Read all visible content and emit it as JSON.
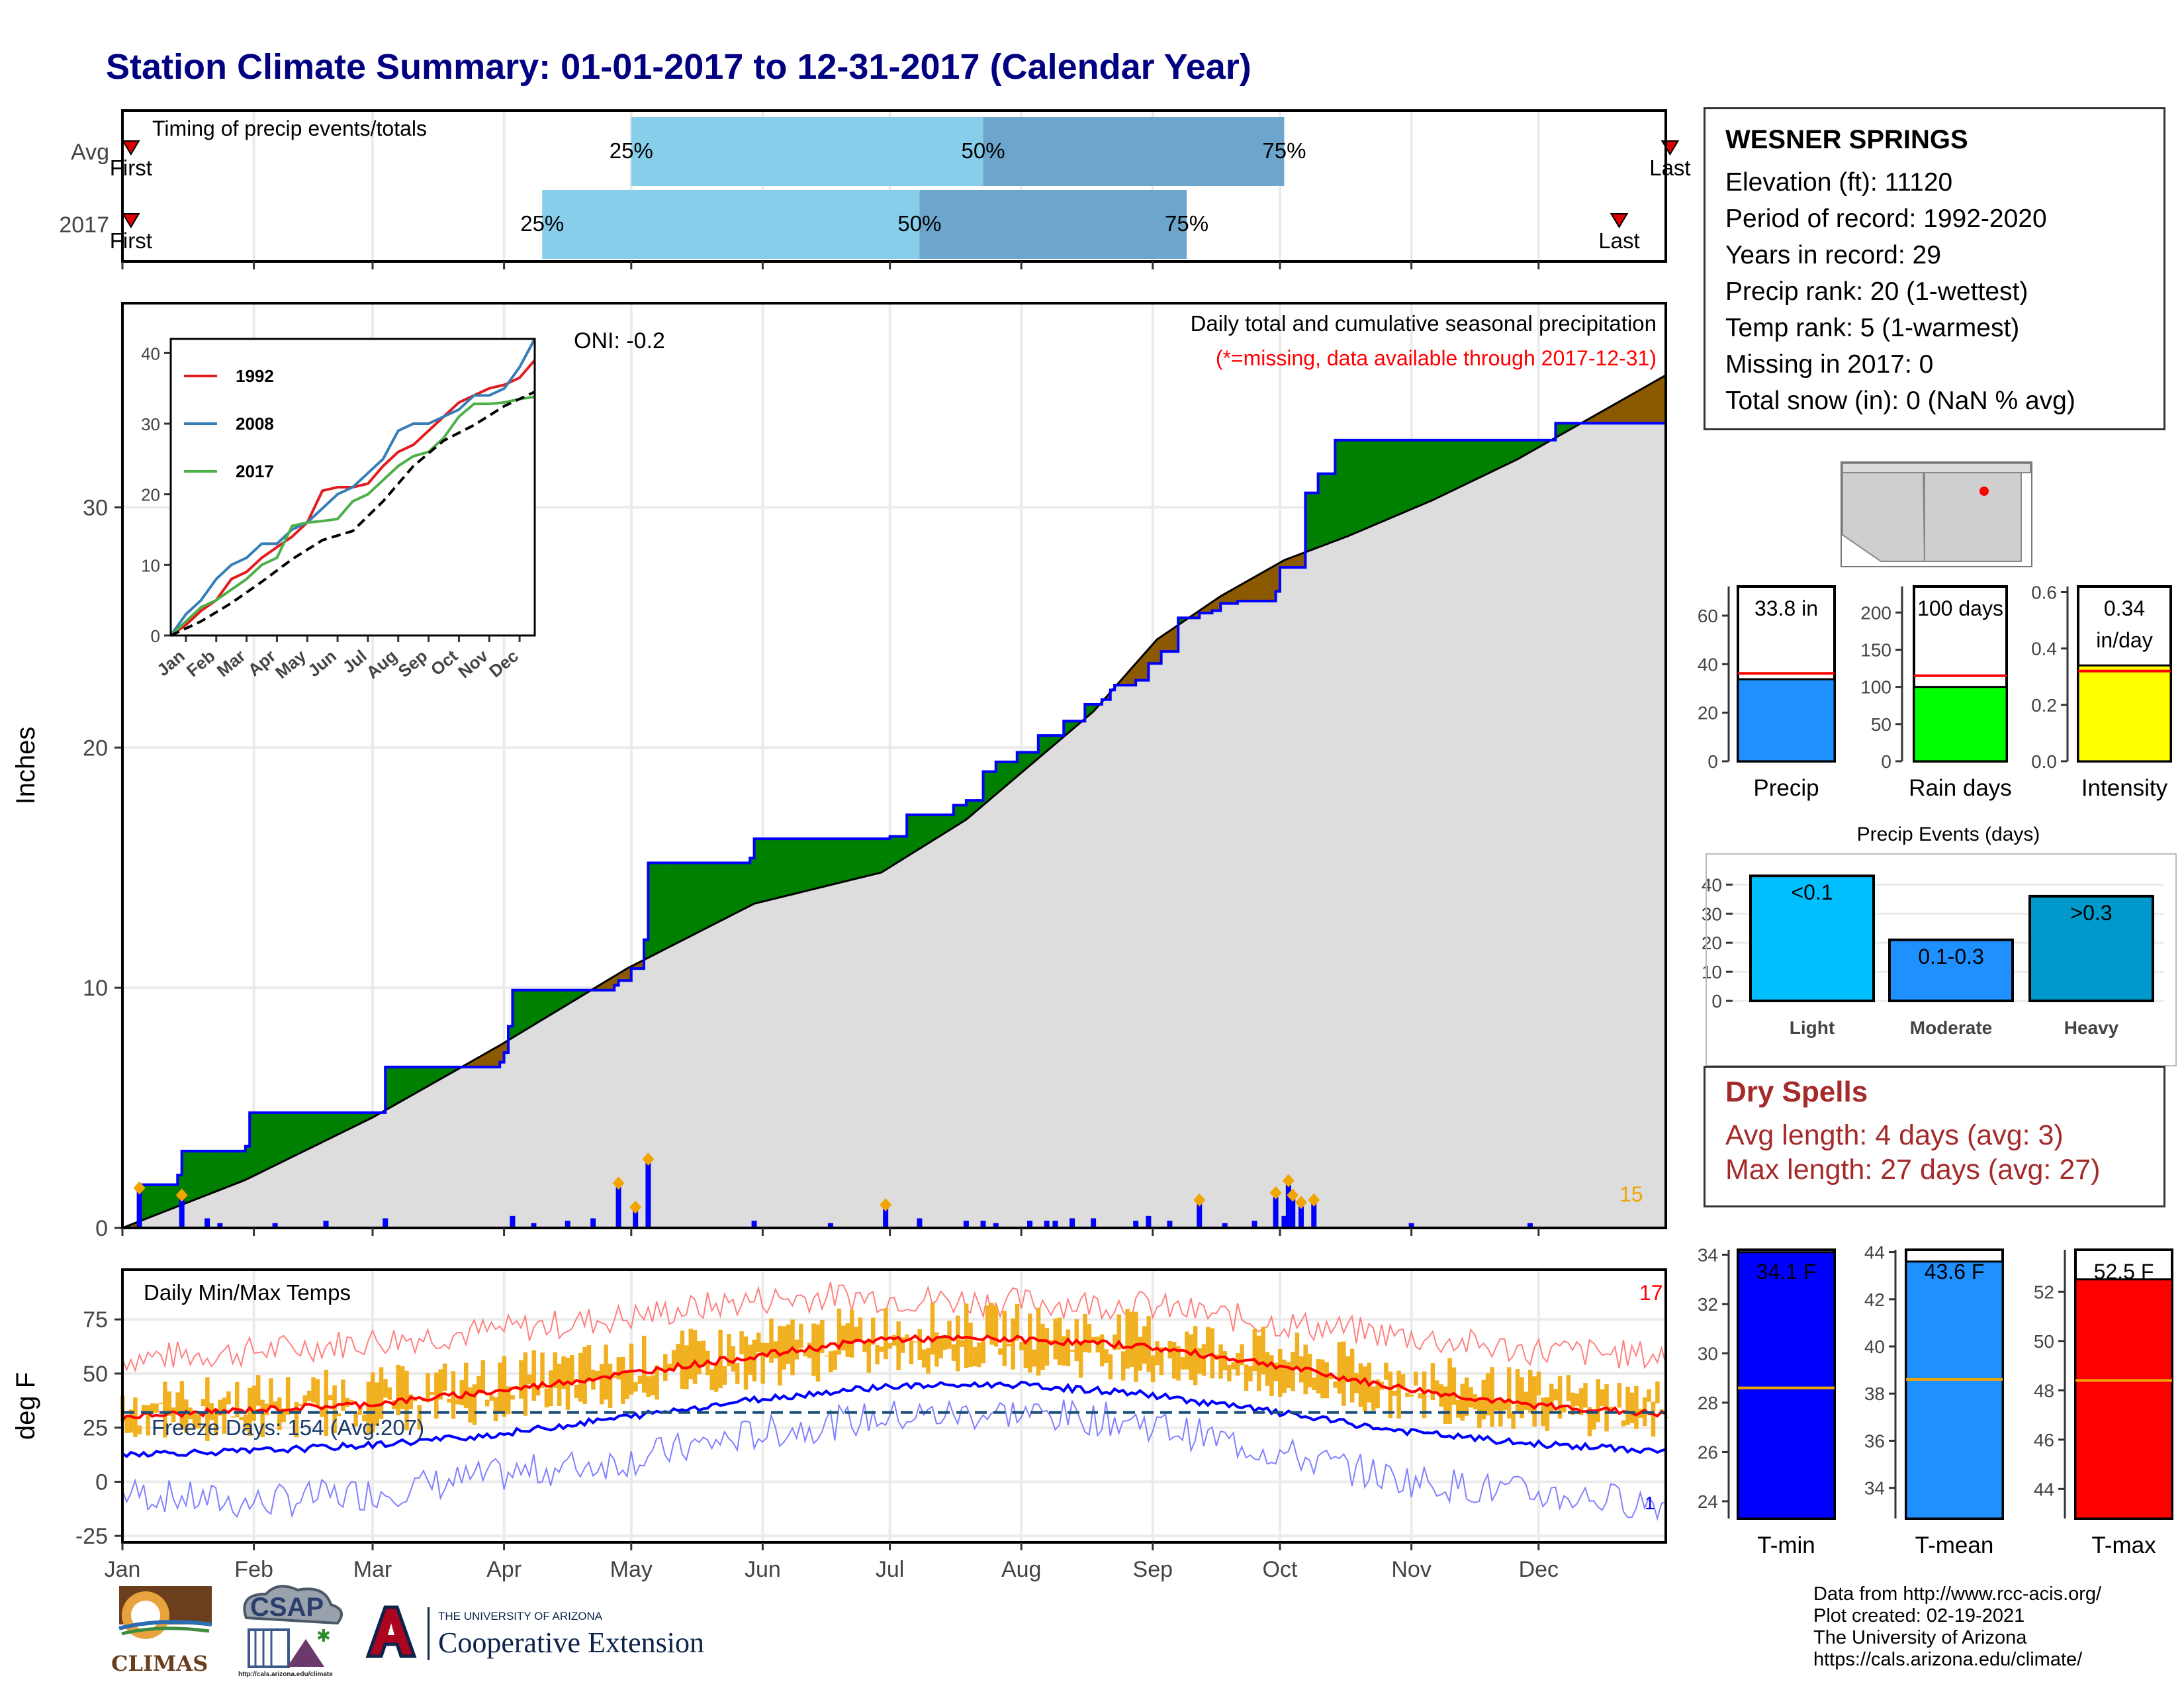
{
  "title": "Station Climate Summary: 01-01-2017 to 12-31-2017 (Calendar Year)",
  "colors": {
    "title": "#000080",
    "green": "#008000",
    "brown": "#8B5A00",
    "blue": "#0000FF",
    "orange": "#F0A500",
    "red": "#FF0000"
  },
  "months": [
    "Jan",
    "Feb",
    "Mar",
    "Apr",
    "May",
    "Jun",
    "Jul",
    "Aug",
    "Sep",
    "Oct",
    "Nov",
    "Dec"
  ],
  "timing": {
    "label": "Timing of precip events/totals",
    "rows": [
      {
        "name": "Avg",
        "p25": "25%",
        "p50": "50%",
        "p75": "75%",
        "first": "First",
        "last": "Last"
      },
      {
        "name": "2017",
        "p25": "25%",
        "p50": "50%",
        "p75": "75%",
        "first": "First",
        "last": "Last"
      }
    ]
  },
  "station": {
    "name": "WESNER SPRINGS",
    "lines": [
      "Elevation (ft): 11120",
      "Period of record: 1992-2020",
      "Years in record: 29",
      "Precip rank: 20 (1-wettest)",
      "Temp rank: 5 (1-warmest)",
      "Missing in 2017: 0",
      "Total snow (in): 0 (NaN % avg)"
    ]
  },
  "precip_panel": {
    "ylabel": "Inches",
    "subtitle": "Daily total and cumulative seasonal precipitation",
    "note": "(*=missing, data available through 2017-12-31)",
    "oni": "ONI: -0.2",
    "count_label": "15"
  },
  "temp_panel": {
    "ylabel": "deg F",
    "title": "Daily Min/Max Temps",
    "freeze": "Freeze Days: 154 (Avg:207)",
    "count_label": "17",
    "min_count_label": "1"
  },
  "bars": {
    "precip": {
      "label": "Precip",
      "value_text": "33.8 in"
    },
    "raindays": {
      "label": "Rain days",
      "value_text": "100 days"
    },
    "intensity": {
      "label": "Intensity",
      "value_text1": "0.34",
      "value_text2": "in/day"
    }
  },
  "events": {
    "title": "Precip Events (days)"
  },
  "dry": {
    "title": "Dry Spells",
    "avg": "Avg length: 4 days (avg: 3)",
    "max": "Max length: 27 days (avg: 27)"
  },
  "temps": {
    "tmin": {
      "label": "T-min",
      "value_text": "34.1 F"
    },
    "tmean": {
      "label": "T-mean",
      "value_text": "43.6 F"
    },
    "tmax": {
      "label": "T-max",
      "value_text": "52.5 F"
    }
  },
  "credits": [
    "Data from http://www.rcc-acis.org/",
    "Plot created: 02-19-2021",
    "The University of Arizona",
    "https://cals.arizona.edu/climate/"
  ],
  "logos": {
    "climas": "CLIMAS",
    "csap": "CSAP",
    "csap_url": "http://cals.arizona.edu/climate",
    "ua_small": "THE UNIVERSITY OF ARIZONA",
    "ua_big": "Cooperative Extension"
  },
  "chart_data": [
    {
      "type": "bar",
      "title": "Timing of precip events/totals",
      "categories": [
        "Avg",
        "2017"
      ],
      "x_unit": "day of year",
      "series": [
        {
          "name": "25%",
          "values": [
            121,
            100
          ]
        },
        {
          "name": "50%",
          "values": [
            204,
            189
          ]
        },
        {
          "name": "75%",
          "values": [
            275,
            252
          ]
        },
        {
          "name": "First",
          "values": [
            3,
            3
          ]
        },
        {
          "name": "Last",
          "values": [
            366,
            354
          ]
        }
      ]
    },
    {
      "type": "area",
      "title": "Daily total and cumulative seasonal precipitation",
      "ylabel": "Inches",
      "xlim": [
        1,
        365
      ],
      "ylim": [
        0,
        38.5
      ],
      "yticks": [
        0,
        10,
        20,
        30
      ],
      "series": [
        {
          "name": "2017 cumulative",
          "x": [
            1,
            5,
            14,
            15,
            30,
            31,
            59,
            63,
            63,
            90,
            91,
            92,
            93,
            117,
            118,
            121,
            122,
            124,
            125,
            149,
            150,
            181,
            182,
            186,
            197,
            200,
            204,
            207,
            212,
            217,
            223,
            228,
            232,
            234,
            235,
            240,
            243,
            246,
            250,
            255,
            258,
            260,
            263,
            264,
            273,
            274,
            280,
            283,
            287,
            335,
            339,
            365
          ],
          "y": [
            0,
            1.8,
            2.2,
            3.2,
            3.4,
            4.8,
            4.8,
            5.2,
            6.7,
            6.9,
            7.3,
            8.4,
            9.9,
            10.1,
            10.3,
            10.8,
            10.8,
            12.0,
            15.2,
            15.4,
            16.2,
            16.2,
            16.3,
            17.2,
            17.6,
            17.8,
            19.0,
            19.4,
            19.8,
            20.5,
            21.1,
            21.8,
            22.0,
            22.4,
            22.6,
            22.8,
            23.5,
            24.0,
            25.4,
            25.6,
            25.7,
            26.0,
            26.0,
            26.1,
            26.5,
            27.5,
            30.6,
            31.4,
            32.8,
            32.8,
            33.5,
            33.8
          ]
        },
        {
          "name": "Average cumulative",
          "x": [
            1,
            30,
            60,
            90,
            120,
            150,
            180,
            200,
            230,
            245,
            260,
            275,
            290,
            310,
            330,
            350,
            365
          ],
          "y": [
            0,
            2.0,
            4.6,
            7.6,
            10.8,
            13.5,
            14.8,
            17.0,
            21.5,
            24.5,
            26.3,
            27.8,
            28.8,
            30.3,
            32.0,
            34.0,
            35.5
          ]
        },
        {
          "name": "Daily precip events",
          "x": [
            5,
            15,
            21,
            24,
            37,
            49,
            63,
            93,
            98,
            106,
            112,
            118,
            122,
            125,
            150,
            168,
            181,
            189,
            200,
            204,
            207,
            215,
            219,
            221,
            225,
            230,
            240,
            243,
            248,
            255,
            261,
            268,
            273,
            275,
            276,
            277,
            279,
            282,
            305,
            333
          ],
          "y": [
            1.5,
            1.2,
            0.4,
            0.2,
            0.2,
            0.3,
            0.4,
            0.5,
            0.2,
            0.3,
            0.4,
            1.7,
            0.7,
            2.7,
            0.3,
            0.2,
            0.8,
            0.4,
            0.3,
            0.3,
            0.2,
            0.3,
            0.3,
            0.3,
            0.4,
            0.4,
            0.3,
            0.5,
            0.3,
            1.0,
            0.2,
            0.3,
            1.3,
            0.5,
            1.8,
            1.2,
            0.9,
            1.0,
            0.2,
            0.2
          ]
        }
      ]
    },
    {
      "type": "line",
      "title": "",
      "xlabel": "",
      "ylim": [
        0,
        42
      ],
      "yticks": [
        0,
        10,
        20,
        30,
        40
      ],
      "categories": [
        "Jan",
        "Feb",
        "Mar",
        "Apr",
        "May",
        "Jun",
        "Jul",
        "Aug",
        "Sep",
        "Oct",
        "Nov",
        "Dec"
      ],
      "series": [
        {
          "name": "1992",
          "x": [
            0,
            0.5,
            1,
            1.5,
            2,
            2.5,
            3,
            3.5,
            4,
            4.5,
            5,
            5.5,
            6,
            6.5,
            7,
            7.5,
            8,
            8.5,
            9,
            9.5,
            10,
            10.5,
            11,
            11.5,
            12
          ],
          "y": [
            0,
            1.5,
            3.5,
            5,
            8,
            9,
            11,
            12.5,
            14,
            16,
            20.5,
            21,
            21,
            21.5,
            24,
            26,
            27,
            29,
            31,
            33,
            34,
            35,
            35.5,
            36.5,
            39
          ]
        },
        {
          "name": "2008",
          "x": [
            0,
            0.5,
            1,
            1.5,
            2,
            2.5,
            3,
            3.5,
            4,
            4.5,
            5,
            5.5,
            6,
            6.5,
            7,
            7.5,
            8,
            8.5,
            9,
            9.5,
            10,
            10.5,
            11,
            11.5,
            12
          ],
          "y": [
            0,
            3,
            5,
            8,
            10,
            11,
            13,
            13,
            15,
            16,
            18,
            20,
            21,
            23,
            25,
            29,
            30,
            30,
            31,
            32,
            34,
            34,
            35,
            38,
            42
          ]
        },
        {
          "name": "2017",
          "x": [
            0,
            0.5,
            1,
            1.5,
            2,
            2.5,
            3,
            3.5,
            4,
            4.5,
            5,
            5.5,
            6,
            6.5,
            7,
            7.5,
            8,
            8.5,
            9,
            9.5,
            10,
            10.5,
            11,
            11.5,
            12
          ],
          "y": [
            0,
            2,
            4,
            5,
            6.5,
            8,
            10,
            11,
            15.5,
            16,
            16.2,
            16.5,
            19,
            20,
            22,
            24,
            25.4,
            26,
            28,
            31,
            32.8,
            32.8,
            33,
            33.5,
            33.8
          ]
        },
        {
          "name": "Average",
          "x": [
            0,
            1,
            2,
            3,
            4,
            5,
            6,
            7,
            8,
            9,
            10,
            11,
            12
          ],
          "y": [
            0,
            2,
            4.6,
            7.6,
            10.8,
            13.5,
            14.8,
            19,
            24,
            27.6,
            29.8,
            32.5,
            34.5
          ]
        }
      ]
    },
    {
      "type": "line",
      "title": "Daily Min/Max Temps",
      "ylabel": "deg F",
      "ylim": [
        -28,
        98
      ],
      "yticks": [
        -25,
        0,
        25,
        50,
        75
      ],
      "x_unit": "day of year",
      "freeze_line": 32,
      "series": [
        {
          "name": "Avg max",
          "x": [
            1,
            30,
            60,
            90,
            120,
            150,
            180,
            210,
            240,
            270,
            300,
            330,
            365
          ],
          "y": [
            30,
            33,
            36,
            42,
            50,
            58,
            66,
            66,
            63,
            55,
            44,
            36,
            31
          ]
        },
        {
          "name": "Avg min",
          "x": [
            1,
            30,
            60,
            90,
            120,
            150,
            180,
            210,
            240,
            270,
            300,
            330,
            365
          ],
          "y": [
            13,
            14,
            17,
            22,
            30,
            38,
            44,
            45,
            41,
            33,
            24,
            18,
            14
          ]
        },
        {
          "name": "Record max",
          "x": [
            1,
            30,
            60,
            90,
            120,
            150,
            170,
            180,
            210,
            240,
            270,
            300,
            330,
            365
          ],
          "y": [
            57,
            60,
            65,
            70,
            76,
            84,
            86,
            85,
            83,
            82,
            74,
            68,
            61,
            58
          ]
        },
        {
          "name": "Record min",
          "x": [
            1,
            30,
            60,
            90,
            120,
            150,
            180,
            210,
            240,
            270,
            300,
            330,
            365
          ],
          "y": [
            -5,
            -10,
            -5,
            3,
            10,
            22,
            30,
            32,
            28,
            15,
            2,
            -5,
            -10
          ]
        }
      ]
    },
    {
      "type": "bar",
      "categories": [
        "Precip"
      ],
      "values": [
        33.8
      ],
      "average": 36.2,
      "ylim": [
        0,
        72
      ],
      "yticks": [
        0,
        20,
        40,
        60
      ]
    },
    {
      "type": "bar",
      "categories": [
        "Rain days"
      ],
      "values": [
        100
      ],
      "average": 115,
      "ylim": [
        0,
        235
      ],
      "yticks": [
        0,
        50,
        100,
        150,
        200
      ]
    },
    {
      "type": "bar",
      "categories": [
        "Intensity"
      ],
      "values": [
        0.34
      ],
      "average": 0.32,
      "ylim": [
        0,
        0.62
      ],
      "yticks": [
        0.0,
        0.2,
        0.4,
        0.6
      ]
    },
    {
      "type": "bar",
      "title": "Precip Events (days)",
      "categories": [
        "Light",
        "Moderate",
        "Heavy"
      ],
      "bar_labels": [
        "<0.1",
        "0.1-0.3",
        ">0.3"
      ],
      "values": [
        43,
        21,
        36
      ],
      "ylim": [
        0,
        46
      ],
      "yticks": [
        0,
        10,
        20,
        30,
        40
      ]
    },
    {
      "type": "bar",
      "categories": [
        "T-min"
      ],
      "values": [
        34.1
      ],
      "average": 28.6,
      "ylim": [
        23.3,
        34.2
      ],
      "yticks": [
        24,
        26,
        28,
        30,
        32,
        34
      ]
    },
    {
      "type": "bar",
      "categories": [
        "T-mean"
      ],
      "values": [
        43.6
      ],
      "average": 38.6,
      "ylim": [
        32.7,
        44.1
      ],
      "yticks": [
        34,
        36,
        38,
        40,
        42,
        44
      ]
    },
    {
      "type": "bar",
      "categories": [
        "T-max"
      ],
      "values": [
        52.5
      ],
      "average": 48.4,
      "ylim": [
        42.8,
        53.7
      ],
      "yticks": [
        44,
        46,
        48,
        50,
        52
      ]
    }
  ]
}
